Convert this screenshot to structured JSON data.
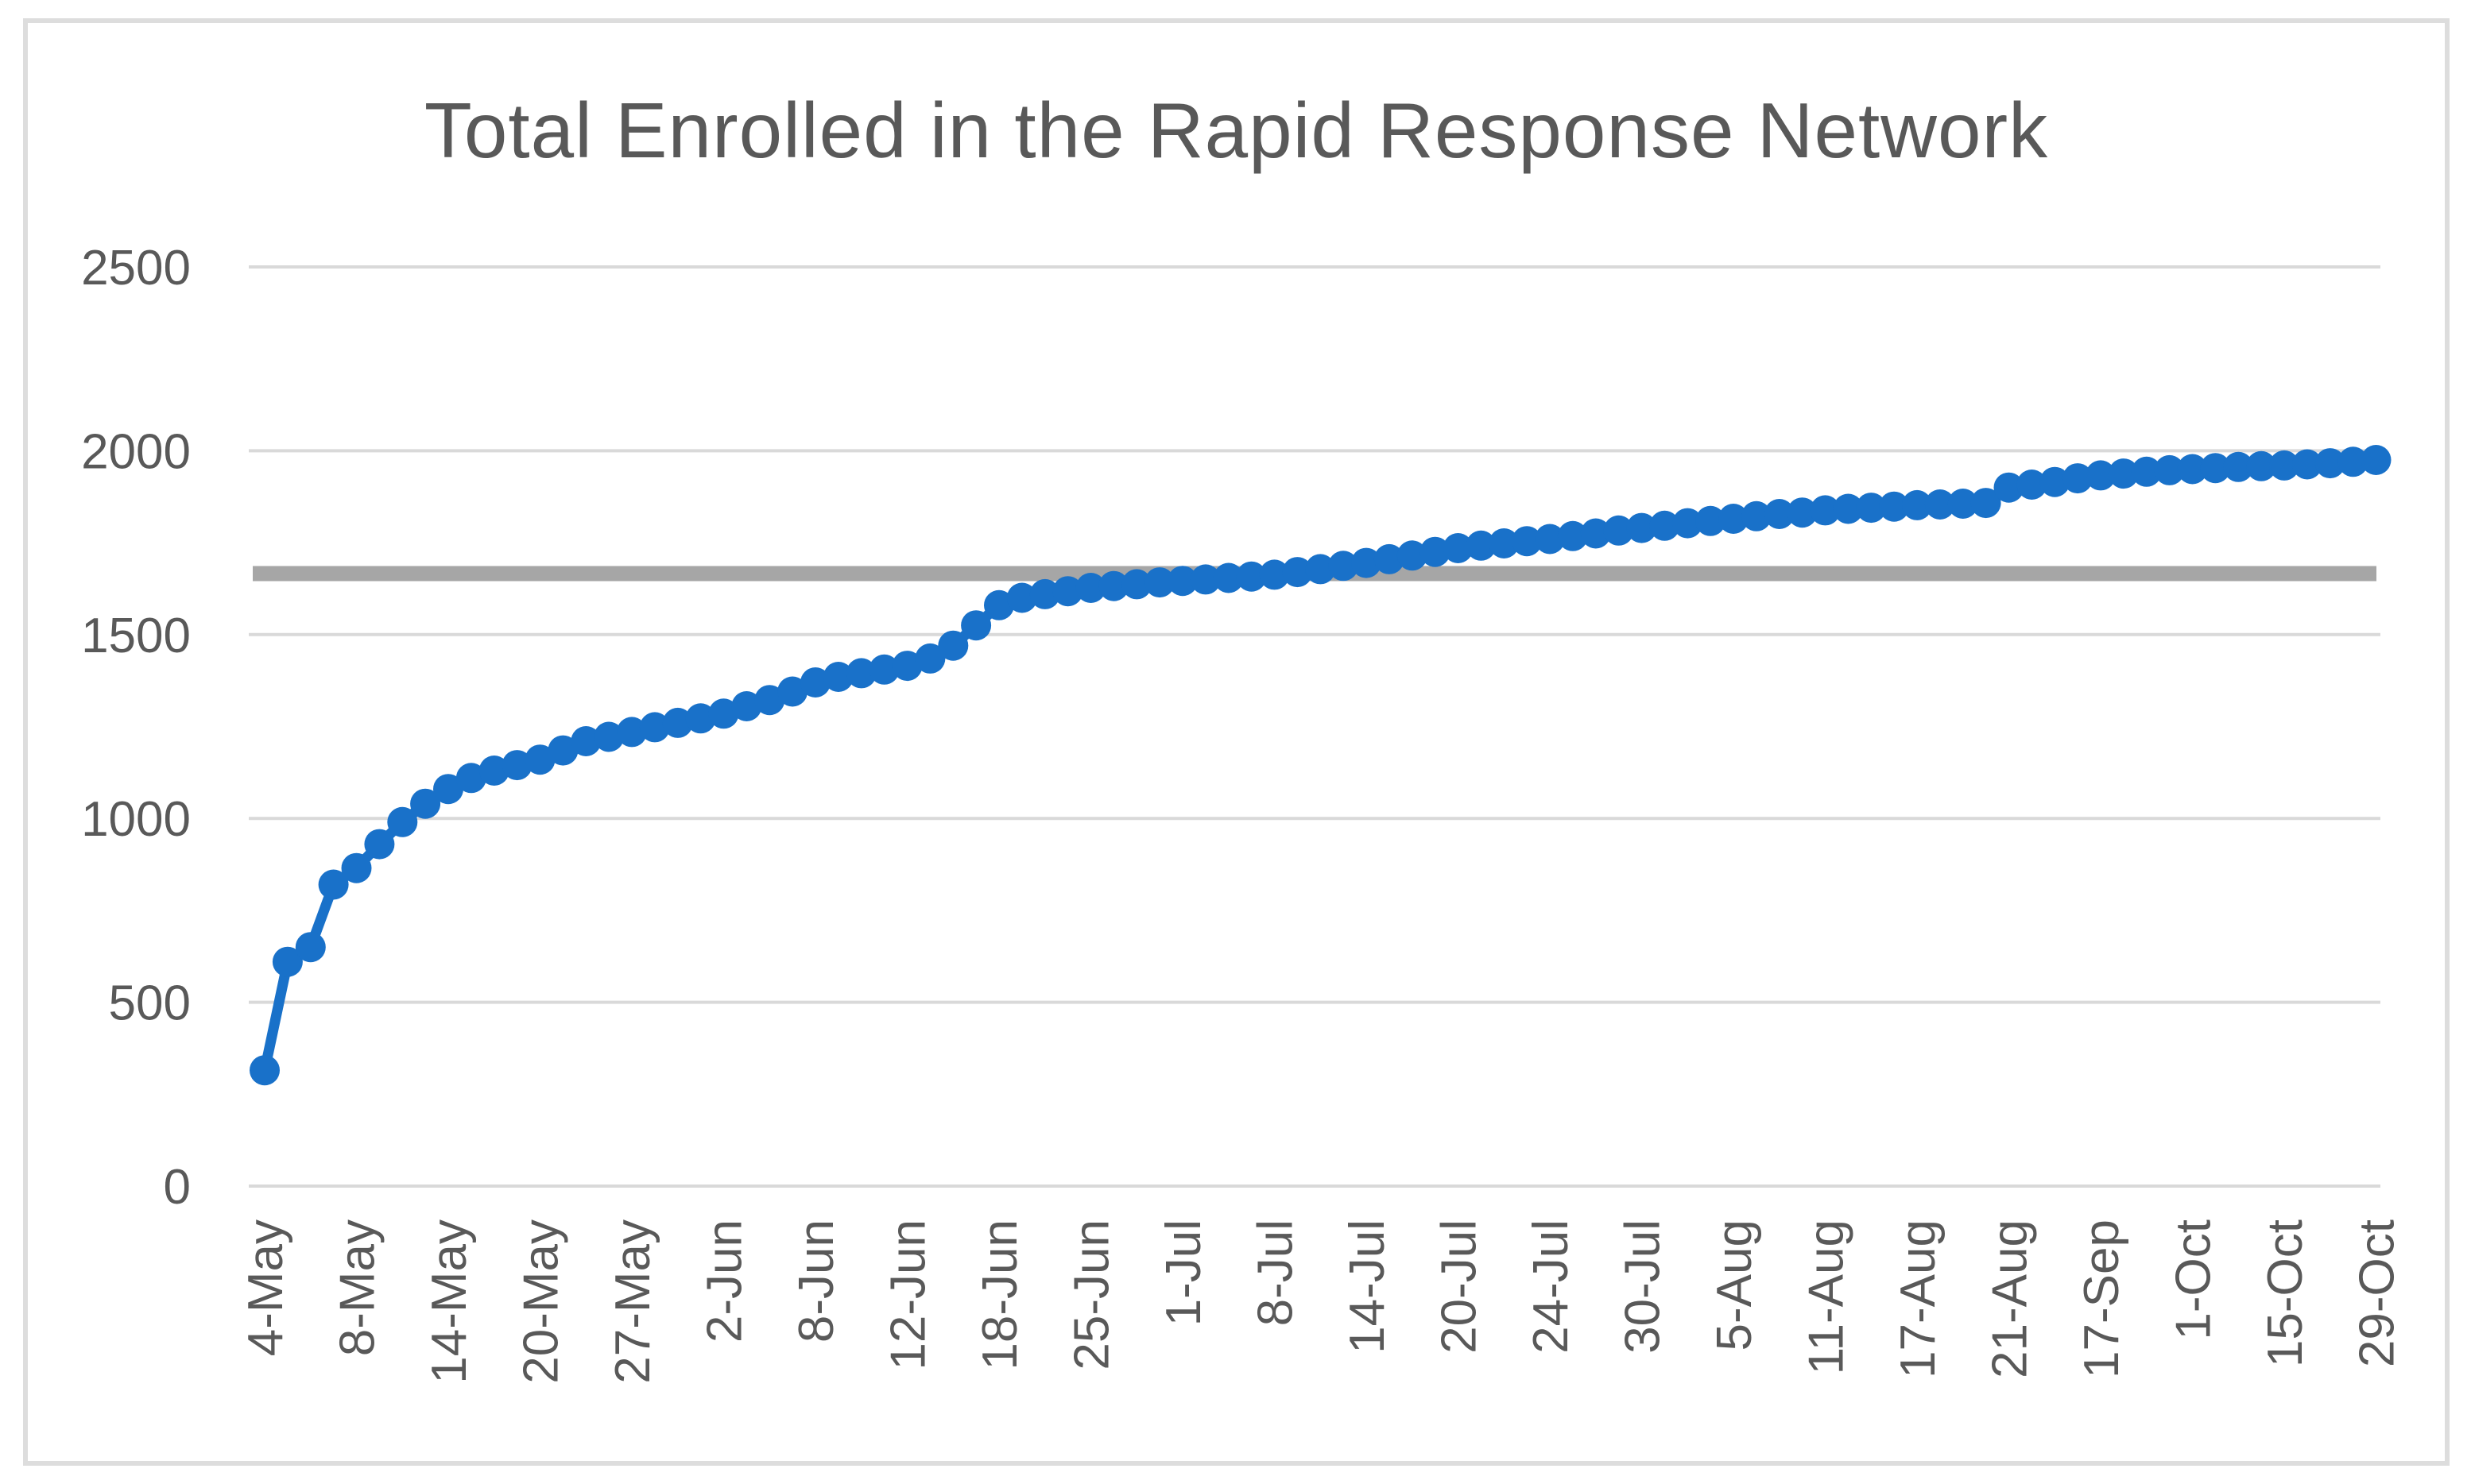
{
  "chart_data": {
    "type": "line",
    "title": "Total Enrolled in the Rapid Response Network",
    "title_color": "#595959",
    "legend_position": "none",
    "grid": true,
    "gridline_color": "#D9D9D9",
    "frame_border_color": "#DDDDDD",
    "background_color": "#FFFFFF",
    "y_axis": {
      "min": 0,
      "max": 2500,
      "step": 500,
      "tick_labels": [
        "2500",
        "2000",
        "1500",
        "1000",
        "500",
        "0"
      ],
      "label_color": "#595959"
    },
    "x_axis": {
      "tick_labels": [
        "4-May",
        "8-May",
        "14-May",
        "20-May",
        "27-May",
        "2-Jun",
        "8-Jun",
        "12-Jun",
        "18-Jun",
        "25-Jun",
        "1-Jul",
        "8-Jul",
        "14-Jul",
        "20-Jul",
        "24-Jul",
        "30-Jul",
        "5-Aug",
        "11-Aug",
        "17-Aug",
        "21-Aug",
        "17-Sep",
        "1-Oct",
        "15-Oct",
        "29-Oct"
      ],
      "label_rotation_degrees": -90,
      "points_per_label": 4,
      "label_color": "#595959"
    },
    "reference_line": {
      "value": 1666,
      "color": "#A6A6A6"
    },
    "series": [
      {
        "name": "Total Enrolled",
        "color": "#1971C9",
        "marker": "circle",
        "values": [
          315,
          610,
          650,
          820,
          865,
          930,
          990,
          1040,
          1080,
          1110,
          1130,
          1145,
          1160,
          1185,
          1210,
          1222,
          1235,
          1248,
          1260,
          1272,
          1285,
          1305,
          1322,
          1345,
          1370,
          1385,
          1395,
          1405,
          1415,
          1435,
          1470,
          1525,
          1580,
          1600,
          1610,
          1618,
          1627,
          1632,
          1637,
          1642,
          1646,
          1650,
          1654,
          1658,
          1663,
          1670,
          1678,
          1687,
          1695,
          1705,
          1715,
          1725,
          1735,
          1742,
          1748,
          1754,
          1760,
          1768,
          1775,
          1783,
          1790,
          1796,
          1803,
          1809,
          1815,
          1822,
          1828,
          1832,
          1838,
          1842,
          1845,
          1848,
          1852,
          1854,
          1856,
          1858,
          1900,
          1908,
          1915,
          1925,
          1933,
          1938,
          1943,
          1947,
          1950,
          1953,
          1956,
          1958,
          1960,
          1963,
          1966,
          1970,
          1975
        ]
      }
    ]
  }
}
